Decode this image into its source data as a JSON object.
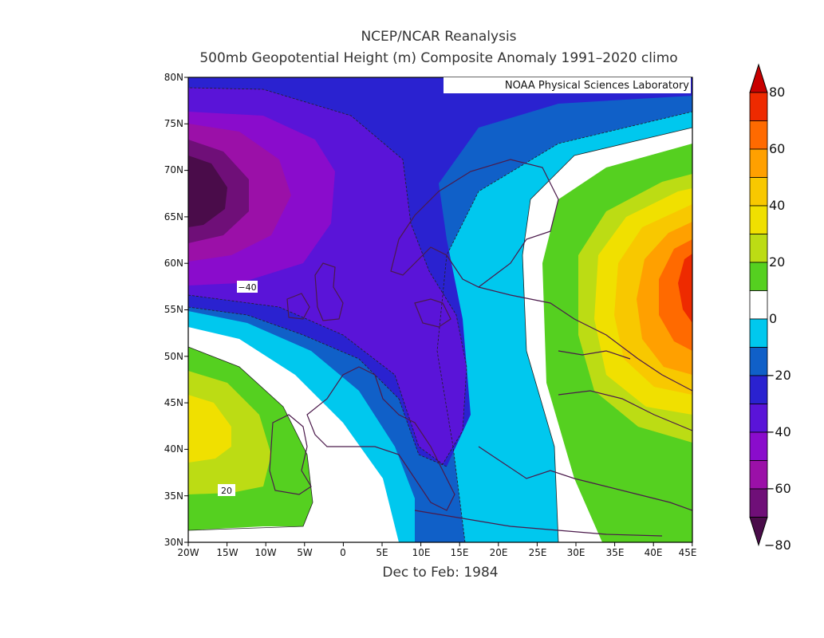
{
  "title_line1": "NCEP/NCAR Reanalysis",
  "title_line2": "500mb Geopotential Height (m) Composite Anomaly 1991–2020 climo",
  "credit": "NOAA Physical Sciences Laboratory",
  "subtitle_bottom": "Dec to Feb: 1984",
  "lat_ticks": [
    "80N",
    "75N",
    "70N",
    "65N",
    "60N",
    "55N",
    "50N",
    "45N",
    "40N",
    "35N",
    "30N"
  ],
  "lon_ticks": [
    "20W",
    "15W",
    "10W",
    "5W",
    "0",
    "5E",
    "10E",
    "15E",
    "20E",
    "25E",
    "30E",
    "35E",
    "40E",
    "45E"
  ],
  "contour_labels": {
    "neg40": "−40",
    "pos20": "20"
  },
  "colorbar": {
    "labels": [
      "80",
      "60",
      "40",
      "20",
      "0",
      "−20",
      "−40",
      "−60",
      "−80"
    ],
    "levels": [
      -80,
      -70,
      -60,
      -50,
      -40,
      -30,
      -20,
      -10,
      0,
      10,
      20,
      30,
      40,
      50,
      60,
      70,
      80
    ],
    "colors": {
      "c_m80": "#4a0c4a",
      "c_m70": "#6f0f78",
      "c_m60": "#9b10a8",
      "c_m50": "#8a0ccc",
      "c_m40": "#5a14d8",
      "c_m30": "#2a22d0",
      "c_m20": "#1060c8",
      "c_m10": "#00c8ee",
      "c_0": "#ffffff",
      "c_10": "#55d020",
      "c_20": "#bcdc14",
      "c_30": "#f0e000",
      "c_40": "#f8c800",
      "c_50": "#ffa000",
      "c_60": "#ff6a00",
      "c_70": "#ee2a00",
      "c_80": "#c80000"
    }
  }
}
